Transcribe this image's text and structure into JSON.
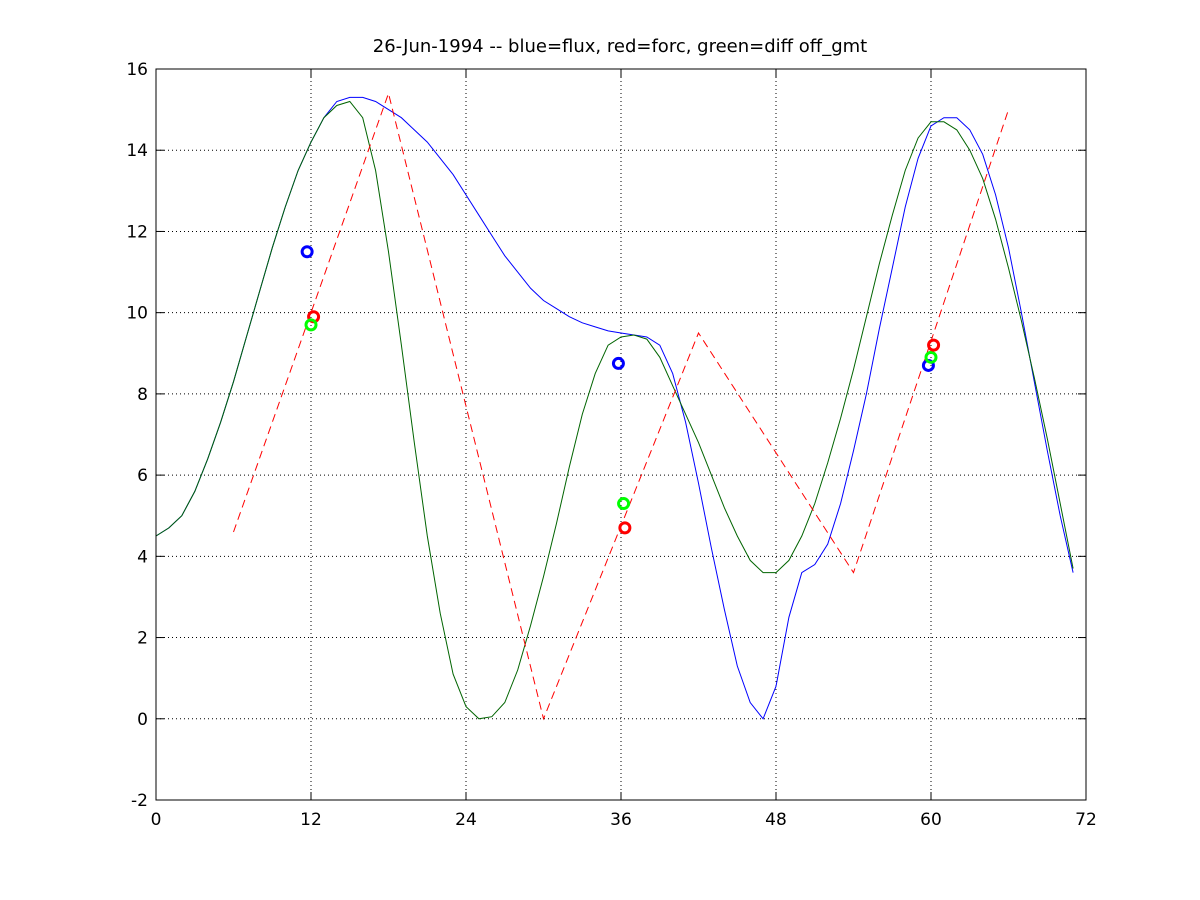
{
  "chart_data": {
    "type": "line",
    "title": "26-Jun-1994 -- blue=flux, red=forc, green=diff off_gmt",
    "xlabel": "",
    "ylabel": "",
    "xlim": [
      0,
      72
    ],
    "ylim": [
      -2,
      16
    ],
    "xticks": [
      0,
      12,
      24,
      36,
      48,
      60,
      72
    ],
    "yticks": [
      -2,
      0,
      2,
      4,
      6,
      8,
      10,
      12,
      14,
      16
    ],
    "grid": true,
    "series": [
      {
        "color": "#0000ff",
        "style": "solid",
        "x": [
          0,
          1,
          2,
          3,
          4,
          5,
          6,
          7,
          8,
          9,
          10,
          11,
          12,
          13,
          14,
          15,
          16,
          17,
          18,
          19,
          20,
          21,
          22,
          23,
          24,
          25,
          26,
          27,
          28,
          29,
          30,
          31,
          32,
          33,
          34,
          35,
          36,
          37,
          38,
          39,
          40,
          41,
          42,
          43,
          44,
          45,
          46,
          47,
          48,
          49,
          50,
          51,
          52,
          53,
          54,
          55,
          56,
          57,
          58,
          59,
          60,
          61,
          62,
          63,
          64,
          65,
          66,
          67,
          68,
          69,
          70,
          71
        ],
        "y": [
          4.5,
          4.7,
          5.0,
          5.6,
          6.4,
          7.3,
          8.3,
          9.4,
          10.5,
          11.6,
          12.6,
          13.5,
          14.2,
          14.8,
          15.2,
          15.3,
          15.3,
          15.2,
          15.0,
          14.8,
          14.5,
          14.2,
          13.8,
          13.4,
          12.9,
          12.4,
          11.9,
          11.4,
          11.0,
          10.6,
          10.3,
          10.1,
          9.9,
          9.75,
          9.65,
          9.55,
          9.5,
          9.45,
          9.4,
          9.2,
          8.5,
          7.3,
          5.8,
          4.2,
          2.7,
          1.3,
          0.4,
          0.0,
          0.8,
          2.5,
          3.6,
          3.8,
          4.3,
          5.3,
          6.6,
          8.0,
          9.6,
          11.1,
          12.6,
          13.8,
          14.6,
          14.8,
          14.8,
          14.5,
          13.9,
          12.9,
          11.6,
          10.0,
          8.3,
          6.6,
          5.0,
          3.6
        ]
      },
      {
        "color": "#ff0000",
        "style": "dashed",
        "x": [
          6,
          18,
          30,
          42,
          54,
          66
        ],
        "y": [
          4.6,
          15.4,
          0.0,
          9.5,
          3.6,
          15.0
        ]
      },
      {
        "color": "#006400",
        "style": "solid",
        "x": [
          0,
          1,
          2,
          3,
          4,
          5,
          6,
          7,
          8,
          9,
          10,
          11,
          12,
          13,
          14,
          15,
          16,
          17,
          18,
          19,
          20,
          21,
          22,
          23,
          24,
          25,
          26,
          27,
          28,
          29,
          30,
          31,
          32,
          33,
          34,
          35,
          36,
          37,
          38,
          39,
          40,
          41,
          42,
          43,
          44,
          45,
          46,
          47,
          48,
          49,
          50,
          51,
          52,
          53,
          54,
          55,
          56,
          57,
          58,
          59,
          60,
          61,
          62,
          63,
          64,
          65,
          66,
          67,
          68,
          69,
          70,
          71
        ],
        "y": [
          4.5,
          4.7,
          5.0,
          5.6,
          6.4,
          7.3,
          8.3,
          9.4,
          10.5,
          11.6,
          12.6,
          13.5,
          14.2,
          14.8,
          15.1,
          15.2,
          14.8,
          13.5,
          11.5,
          9.2,
          6.8,
          4.5,
          2.6,
          1.1,
          0.3,
          0.0,
          0.05,
          0.4,
          1.2,
          2.3,
          3.5,
          4.8,
          6.2,
          7.5,
          8.5,
          9.2,
          9.4,
          9.45,
          9.35,
          8.9,
          8.2,
          7.5,
          6.8,
          6.0,
          5.2,
          4.5,
          3.9,
          3.6,
          3.6,
          3.9,
          4.5,
          5.3,
          6.3,
          7.4,
          8.6,
          9.9,
          11.2,
          12.4,
          13.5,
          14.3,
          14.7,
          14.7,
          14.5,
          14.0,
          13.3,
          12.3,
          11.1,
          9.8,
          8.4,
          6.9,
          5.3,
          3.7
        ]
      }
    ],
    "markers": [
      {
        "x": 11.7,
        "y": 11.5,
        "color": "#0000ff"
      },
      {
        "x": 12.2,
        "y": 9.9,
        "color": "#ff0000"
      },
      {
        "x": 12.0,
        "y": 9.7,
        "color": "#00ff00"
      },
      {
        "x": 35.8,
        "y": 8.75,
        "color": "#0000ff"
      },
      {
        "x": 36.2,
        "y": 5.3,
        "color": "#00ff00"
      },
      {
        "x": 36.3,
        "y": 4.7,
        "color": "#ff0000"
      },
      {
        "x": 59.8,
        "y": 8.7,
        "color": "#0000ff"
      },
      {
        "x": 60.0,
        "y": 8.9,
        "color": "#00ff00"
      },
      {
        "x": 60.2,
        "y": 9.2,
        "color": "#ff0000"
      }
    ]
  }
}
